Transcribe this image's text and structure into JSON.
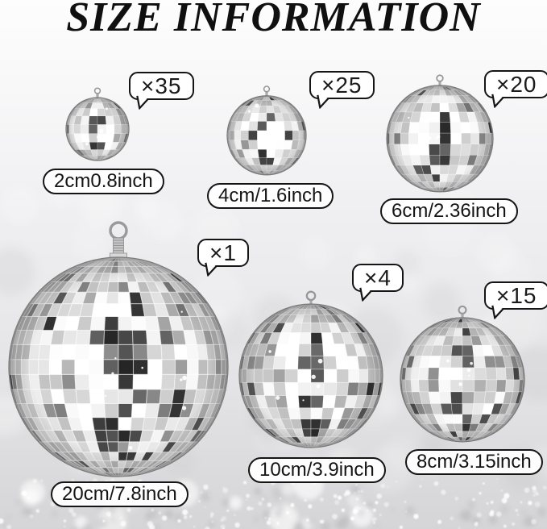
{
  "title": "SIZE INFORMATION",
  "items": [
    {
      "id": "2cm",
      "quantity": "×35",
      "size": "2cm0.8inch"
    },
    {
      "id": "4cm",
      "quantity": "×25",
      "size": "4cm/1.6inch"
    },
    {
      "id": "6cm",
      "quantity": "×20",
      "size": "6cm/2.36inch"
    },
    {
      "id": "20cm",
      "quantity": "×1",
      "size": "20cm/7.8inch"
    },
    {
      "id": "10cm",
      "quantity": "×4",
      "size": "10cm/3.9inch"
    },
    {
      "id": "8cm",
      "quantity": "×15",
      "size": "8cm/3.15inch"
    }
  ],
  "colors": {
    "text": "#111111",
    "callout_background": "#ffffff",
    "callout_border": "#151515",
    "ball_silver": "#d9d9d9",
    "ball_dark_tile": "#2e2e2e",
    "background_top": "#fdfdfd",
    "background_bottom": "#d5d5d7"
  }
}
